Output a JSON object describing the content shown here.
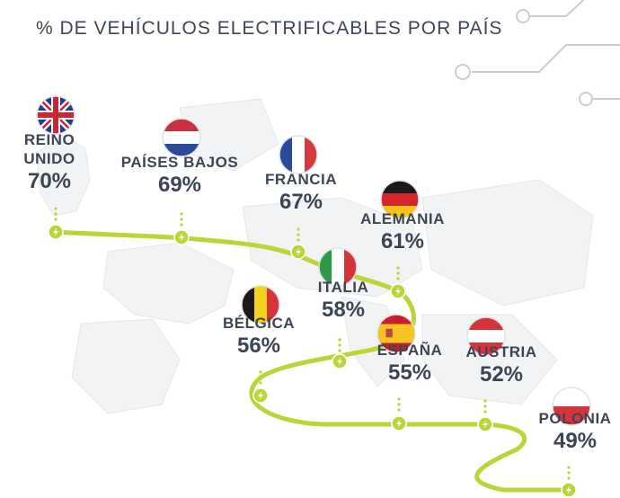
{
  "title": "% DE VEHÍCULOS ELECTRIFICABLES POR PAÍS",
  "colors": {
    "route": "#bcd437",
    "text": "#3b4553",
    "circuit": "#c9cdd2",
    "map": "#f1f2f4"
  },
  "countries": [
    {
      "id": "reino-unido",
      "name": "REINO\nUNIDO",
      "value": "70%",
      "flag": "uk"
    },
    {
      "id": "paises-bajos",
      "name": "PAÍSES BAJOS",
      "value": "69%",
      "flag": "nl"
    },
    {
      "id": "francia",
      "name": "FRANCIA",
      "value": "67%",
      "flag": "fr"
    },
    {
      "id": "alemania",
      "name": "ALEMANIA",
      "value": "61%",
      "flag": "de"
    },
    {
      "id": "italia",
      "name": "ITALIA",
      "value": "58%",
      "flag": "it"
    },
    {
      "id": "belgica",
      "name": "BÉLGICA",
      "value": "56%",
      "flag": "be"
    },
    {
      "id": "espana",
      "name": "ESPAÑA",
      "value": "55%",
      "flag": "es"
    },
    {
      "id": "austria",
      "name": "AUSTRIA",
      "value": "52%",
      "flag": "at"
    },
    {
      "id": "polonia",
      "name": "POLONIA",
      "value": "49%",
      "flag": "pl"
    }
  ]
}
